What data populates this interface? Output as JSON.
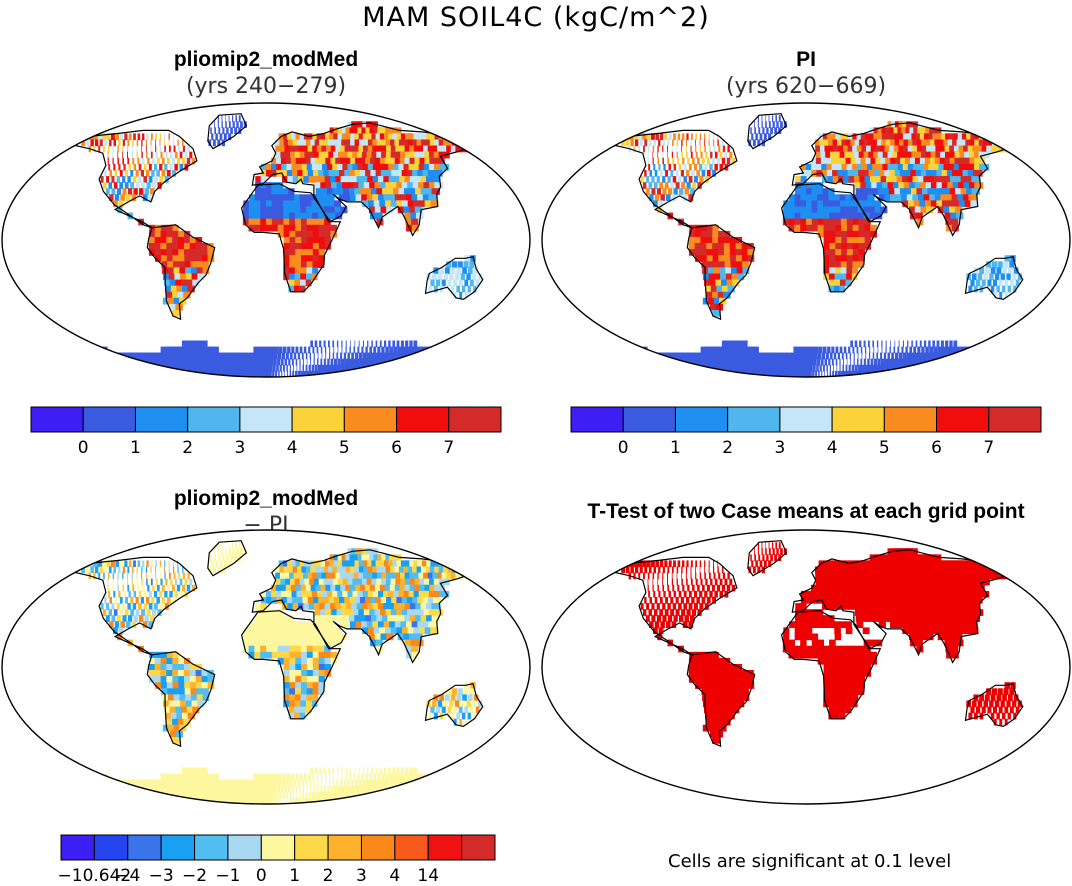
{
  "figure": {
    "title": "MAM SOIL4C (kgC/m^2)"
  },
  "panels": [
    {
      "title": "pliomip2_modMed",
      "subtitle": "(yrs 240−279)",
      "type": "field"
    },
    {
      "title": "PI",
      "subtitle": "(yrs 620−669)",
      "type": "field"
    },
    {
      "title": "pliomip2_modMed",
      "subtitle": "− PI",
      "type": "difference"
    },
    {
      "title": "T-Test of two Case means at each grid point",
      "subtitle": "",
      "type": "significance"
    }
  ],
  "colorbars": {
    "field": {
      "colors": [
        "#3d1ff5",
        "#3a5ae0",
        "#1e8ef0",
        "#4fb6ee",
        "#c5e6f6",
        "#fcd23a",
        "#fa8c1f",
        "#f20d0d",
        "#d42a2a"
      ],
      "labels": [
        "0",
        "1",
        "2",
        "3",
        "4",
        "5",
        "6",
        "7"
      ]
    },
    "difference": {
      "colors": [
        "#3d1ff5",
        "#2545f0",
        "#3a73ea",
        "#1aa0f2",
        "#52bdf0",
        "#a9d9f2",
        "#fdf7a0",
        "#fdd94a",
        "#fdb12c",
        "#fa8919",
        "#f75a1a",
        "#ef1212",
        "#d42a2a"
      ],
      "labels": [
        "−10.642",
        "−4",
        "−3",
        "−2",
        "−1",
        "0",
        "1",
        "2",
        "3",
        "4",
        "14"
      ]
    }
  },
  "significance_note": "Cells are significant at 0.1 level",
  "significance_color": "#ee0000"
}
